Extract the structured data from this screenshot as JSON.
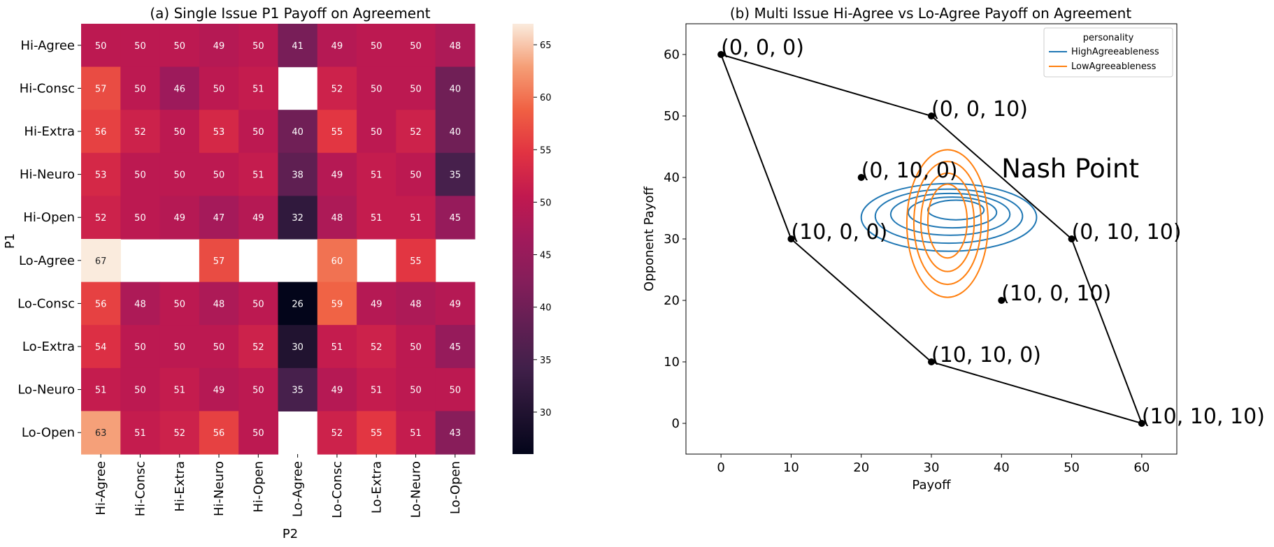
{
  "chart_data": [
    {
      "type": "heatmap",
      "title": "(a) Single Issue P1 Payoff on Agreement",
      "xlabel": "P2",
      "ylabel": "P1",
      "rows": [
        "Hi-Agree",
        "Hi-Consc",
        "Hi-Extra",
        "Hi-Neuro",
        "Hi-Open",
        "Lo-Agree",
        "Lo-Consc",
        "Lo-Extra",
        "Lo-Neuro",
        "Lo-Open"
      ],
      "columns": [
        "Hi-Agree",
        "Hi-Consc",
        "Hi-Extra",
        "Hi-Neuro",
        "Hi-Open",
        "Lo-Agree",
        "Lo-Consc",
        "Lo-Extra",
        "Lo-Neuro",
        "Lo-Open"
      ],
      "values": [
        [
          50,
          50,
          50,
          49,
          50,
          41,
          49,
          50,
          50,
          48
        ],
        [
          57,
          50,
          46,
          50,
          51,
          null,
          52,
          50,
          50,
          40
        ],
        [
          56,
          52,
          50,
          53,
          50,
          40,
          55,
          50,
          52,
          40
        ],
        [
          53,
          50,
          50,
          50,
          51,
          38,
          49,
          51,
          50,
          35
        ],
        [
          52,
          50,
          49,
          47,
          49,
          32,
          48,
          51,
          51,
          45
        ],
        [
          67,
          null,
          null,
          57,
          null,
          null,
          60,
          null,
          55,
          null
        ],
        [
          56,
          48,
          50,
          48,
          50,
          26,
          59,
          49,
          48,
          49
        ],
        [
          54,
          50,
          50,
          50,
          52,
          30,
          51,
          52,
          50,
          45
        ],
        [
          51,
          50,
          51,
          49,
          50,
          35,
          49,
          51,
          50,
          50
        ],
        [
          63,
          51,
          52,
          56,
          50,
          null,
          52,
          55,
          51,
          43
        ]
      ],
      "colorbar": {
        "min": 26,
        "max": 67,
        "ticks": [
          30,
          35,
          40,
          45,
          50,
          55,
          60,
          65
        ]
      }
    },
    {
      "type": "scatter",
      "title": "(b) Multi Issue Hi-Agree vs Lo-Agree Payoff on Agreement",
      "xlabel": "Payoff",
      "ylabel": "Opponent Payoff",
      "xlim": [
        -5,
        65
      ],
      "ylim": [
        -5,
        65
      ],
      "xticks": [
        0,
        10,
        20,
        30,
        40,
        50,
        60
      ],
      "yticks": [
        0,
        10,
        20,
        30,
        40,
        50,
        60
      ],
      "points": [
        {
          "x": 0,
          "y": 60,
          "label": "(0, 0, 0)"
        },
        {
          "x": 30,
          "y": 50,
          "label": "(0, 0, 10)"
        },
        {
          "x": 20,
          "y": 40,
          "label": "(0, 10, 0)"
        },
        {
          "x": 10,
          "y": 30,
          "label": "(10, 0, 0)"
        },
        {
          "x": 50,
          "y": 30,
          "label": "(0, 10, 10)"
        },
        {
          "x": 40,
          "y": 20,
          "label": "(10, 0, 10)"
        },
        {
          "x": 30,
          "y": 10,
          "label": "(10, 10, 0)"
        },
        {
          "x": 60,
          "y": 0,
          "label": "(10, 10, 10)"
        }
      ],
      "hull": [
        [
          0,
          60
        ],
        [
          30,
          50
        ],
        [
          50,
          30
        ],
        [
          60,
          0
        ],
        [
          30,
          10
        ],
        [
          10,
          30
        ],
        [
          0,
          60
        ]
      ],
      "annotation": {
        "x": 40,
        "y": 40,
        "text": "Nash Point"
      },
      "legend": {
        "title": "personality",
        "placement": "top-right",
        "entries": [
          {
            "name": "HighAgreeableness",
            "color": "#1f77b4"
          },
          {
            "name": "LowAgreeableness",
            "color": "#ff7f0e"
          }
        ]
      },
      "kde_contours": {
        "HighAgreeableness": [
          {
            "cx": 32.5,
            "cy": 33.5,
            "rx": 12.5,
            "ry": 5.5
          },
          {
            "cx": 32.5,
            "cy": 33.7,
            "rx": 10.5,
            "ry": 4.4
          },
          {
            "cx": 32.7,
            "cy": 34.0,
            "rx": 8.5,
            "ry": 3.4
          },
          {
            "cx": 33.0,
            "cy": 34.3,
            "rx": 6.3,
            "ry": 2.5
          },
          {
            "cx": 33.5,
            "cy": 34.7,
            "rx": 4.0,
            "ry": 1.6
          }
        ],
        "LowAgreeableness": [
          {
            "cx": 32.3,
            "cy": 32.5,
            "rx": 5.8,
            "ry": 12.0
          },
          {
            "cx": 32.3,
            "cy": 32.6,
            "rx": 4.8,
            "ry": 10.0
          },
          {
            "cx": 32.3,
            "cy": 32.7,
            "rx": 3.8,
            "ry": 8.0
          },
          {
            "cx": 32.3,
            "cy": 32.9,
            "rx": 2.8,
            "ry": 6.0
          }
        ]
      }
    }
  ]
}
